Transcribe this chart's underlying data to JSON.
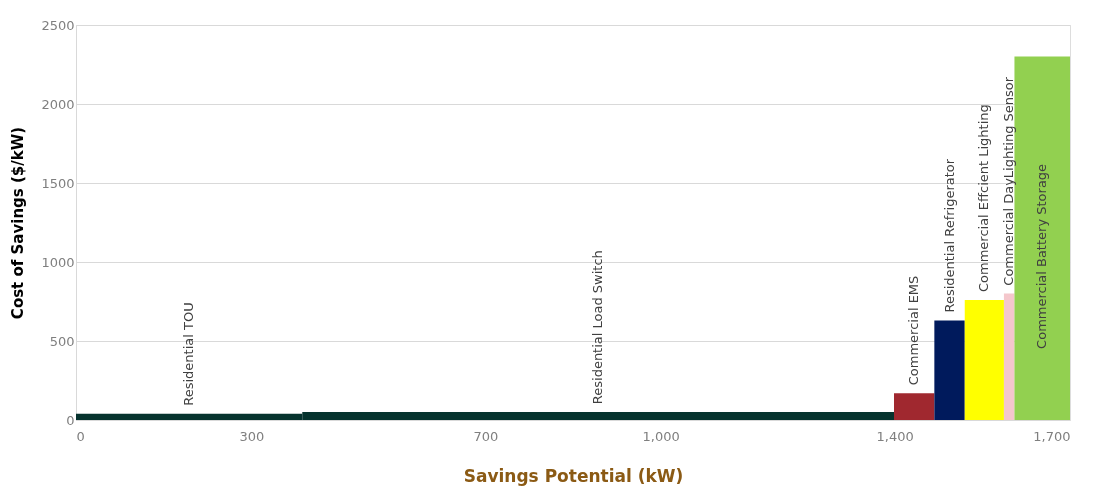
{
  "chart_data": {
    "type": "area",
    "xlabel": "Savings Potential (kW)",
    "ylabel": "Cost of Savings ($/kW)",
    "xlim": [
      0,
      1700
    ],
    "xticks": [
      0,
      300,
      700,
      {
        "value": 1000,
        "label": "1,000"
      },
      {
        "value": 1400,
        "label": "1,400"
      },
      {
        "value": 1700,
        "label": "1,700"
      }
    ],
    "ylim": [
      0,
      2500
    ],
    "yticks": [
      0,
      500,
      1000,
      1500,
      2000,
      2500
    ],
    "grid": "y",
    "series": [
      {
        "name": "Residential TOU",
        "color": "#06332e",
        "x": [
          0,
          387
        ],
        "values": [
          40,
          40
        ]
      },
      {
        "name": "Residential Load Switch",
        "color": "#06332e",
        "x": [
          387,
          1399
        ],
        "values": [
          50,
          50
        ]
      },
      {
        "name": "Commercial EMS",
        "color": "#a0282f",
        "x": [
          1399,
          1468
        ],
        "values": [
          170,
          170
        ]
      },
      {
        "name": "Residential Refrigerator",
        "color": "#001a5c",
        "x": [
          1468,
          1520
        ],
        "values": [
          630,
          630
        ]
      },
      {
        "name": "Commercial Effcient Lighting",
        "color": "#ffff00",
        "x": [
          1520,
          1587
        ],
        "values": [
          760,
          760
        ]
      },
      {
        "name": "Commercial DayLighting Sensor",
        "color": "#f4c7cc",
        "x": [
          1587,
          1605
        ],
        "values": [
          800,
          800
        ]
      },
      {
        "name": "Commercial Battery Storage",
        "color": "#92d050",
        "x": [
          1605,
          1700
        ],
        "values": [
          2300,
          2300
        ]
      }
    ]
  }
}
